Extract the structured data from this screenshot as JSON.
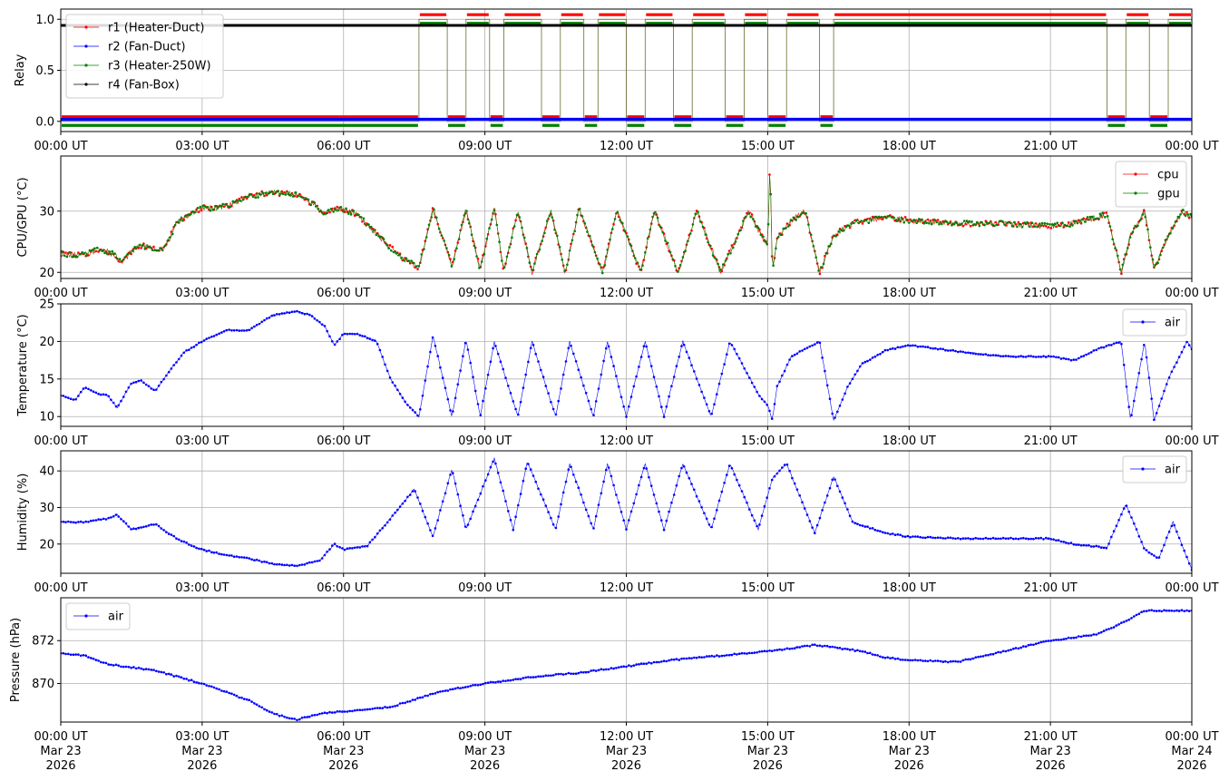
{
  "chart_data": [
    {
      "type": "line",
      "ylabel": "Relay",
      "ylim": [
        -0.1,
        1.1
      ],
      "yticks": [
        0.0,
        0.5,
        1.0
      ],
      "ytick_labels": [
        "0.0",
        "0.5",
        "1.0"
      ],
      "grid": true,
      "legend_position": "upper-left",
      "series": [
        {
          "name": "r1 (Heater-Duct)",
          "color": "#ff0000",
          "offset": 0.045,
          "on_intervals": [
            [
              7.6,
              8.2
            ],
            [
              8.6,
              9.1
            ],
            [
              9.4,
              10.2
            ],
            [
              10.6,
              11.1
            ],
            [
              11.4,
              12.0
            ],
            [
              12.4,
              13.0
            ],
            [
              13.4,
              14.1
            ],
            [
              14.5,
              15.0
            ],
            [
              15.4,
              16.1
            ],
            [
              16.4,
              22.2
            ],
            [
              22.6,
              23.1
            ],
            [
              23.5,
              24.0
            ]
          ]
        },
        {
          "name": "r2 (Fan-Duct)",
          "color": "#0000ff",
          "offset": 0.02,
          "on_intervals": []
        },
        {
          "name": "r3 (Heater-250W)",
          "color": "#008000",
          "offset": -0.04,
          "on_intervals": [
            [
              7.6,
              8.2
            ],
            [
              8.6,
              9.1
            ],
            [
              9.4,
              10.2
            ],
            [
              10.6,
              11.1
            ],
            [
              11.4,
              12.0
            ],
            [
              12.4,
              13.0
            ],
            [
              13.4,
              14.1
            ],
            [
              14.5,
              15.0
            ],
            [
              15.4,
              16.1
            ],
            [
              16.4,
              22.2
            ],
            [
              22.6,
              23.1
            ],
            [
              23.5,
              24.0
            ]
          ]
        },
        {
          "name": "r4 (Fan-Box)",
          "color": "#000000",
          "constant": 0.94
        }
      ]
    },
    {
      "type": "line",
      "ylabel": "CPU/GPU (°C)",
      "ylim": [
        19,
        39
      ],
      "yticks": [
        20,
        30
      ],
      "ytick_labels": [
        "20",
        "30"
      ],
      "grid": true,
      "legend_position": "upper-right",
      "series": [
        {
          "name": "cpu",
          "color": "#ff0000"
        },
        {
          "name": "gpu",
          "color": "#008000"
        }
      ],
      "x": [
        0,
        0.5,
        0.8,
        1.0,
        1.2,
        1.3,
        1.5,
        1.7,
        2.0,
        2.2,
        2.5,
        3.0,
        3.3,
        3.6,
        4.0,
        4.5,
        5.0,
        5.4,
        5.6,
        5.8,
        6.0,
        6.3,
        6.6,
        7.0,
        7.3,
        7.6,
        7.9,
        8.3,
        8.6,
        8.9,
        9.2,
        9.4,
        9.7,
        10.0,
        10.4,
        10.7,
        11.0,
        11.5,
        11.8,
        12.3,
        12.6,
        13.1,
        13.5,
        14.0,
        14.6,
        15.0,
        15.05,
        15.1,
        15.2,
        15.5,
        15.8,
        16.1,
        16.4,
        16.8,
        17.5,
        18.0,
        19.0,
        20.0,
        21.0,
        21.5,
        22.0,
        22.2,
        22.5,
        22.7,
        23.0,
        23.2,
        23.5,
        23.8,
        24.0
      ],
      "values": [
        23,
        22.8,
        23.8,
        23.4,
        22.5,
        21.5,
        23.5,
        24.4,
        23.8,
        24.0,
        28.5,
        30.5,
        30.5,
        31.0,
        32.5,
        33.0,
        32.8,
        31.0,
        29.5,
        30.3,
        30.2,
        29.5,
        27.0,
        24.0,
        22.0,
        20.8,
        30.3,
        21.0,
        30.3,
        20.5,
        30.5,
        20.2,
        30.0,
        20.0,
        30.0,
        20.0,
        30.3,
        20.0,
        30.3,
        20.0,
        30.0,
        20.0,
        30.0,
        20.0,
        30.0,
        24.0,
        38.5,
        20.0,
        25.5,
        28.5,
        30.0,
        20.0,
        26.0,
        28.0,
        29.0,
        28.5,
        28.0,
        28.0,
        27.5,
        28.0,
        29.0,
        29.5,
        20.0,
        26.0,
        30.0,
        20.5,
        26.0,
        30.0,
        29.0
      ]
    },
    {
      "type": "line",
      "ylabel": "Temperature (°C)",
      "ylim": [
        8.7,
        25
      ],
      "yticks": [
        10,
        15,
        20,
        25
      ],
      "ytick_labels": [
        "10",
        "15",
        "20",
        "25"
      ],
      "grid": true,
      "legend_position": "upper-right",
      "series": [
        {
          "name": "air",
          "color": "#0000ff"
        }
      ],
      "x": [
        0,
        0.3,
        0.5,
        0.8,
        1.0,
        1.2,
        1.5,
        1.7,
        2.0,
        2.3,
        2.6,
        3.0,
        3.5,
        4.0,
        4.5,
        5.0,
        5.3,
        5.6,
        5.8,
        6.0,
        6.3,
        6.7,
        7.0,
        7.3,
        7.6,
        7.9,
        8.3,
        8.6,
        8.9,
        9.2,
        9.7,
        10.0,
        10.5,
        10.8,
        11.3,
        11.6,
        12.0,
        12.4,
        12.8,
        13.2,
        13.8,
        14.2,
        14.8,
        15.0,
        15.1,
        15.2,
        15.5,
        16.1,
        16.4,
        16.7,
        17.0,
        17.5,
        18.0,
        19.0,
        20.0,
        21.0,
        21.5,
        22.0,
        22.5,
        22.7,
        23.0,
        23.2,
        23.5,
        23.9,
        24.0
      ],
      "values": [
        12.8,
        12.2,
        13.9,
        13.0,
        12.8,
        11.2,
        14.5,
        14.8,
        13.4,
        16.0,
        18.5,
        20.0,
        21.5,
        21.5,
        23.5,
        24.0,
        23.5,
        22.0,
        19.5,
        21.0,
        21.0,
        20.0,
        15.0,
        12.0,
        10.0,
        20.7,
        10.0,
        20.3,
        10.0,
        20.0,
        10.0,
        20.0,
        10.0,
        20.0,
        10.0,
        20.0,
        10.0,
        20.0,
        10.0,
        20.0,
        10.0,
        20.0,
        13.0,
        11.5,
        9.5,
        14.0,
        18.0,
        20.0,
        9.5,
        14.0,
        17.0,
        18.8,
        19.5,
        18.7,
        18.0,
        18.0,
        17.5,
        19.0,
        20.0,
        9.5,
        20.0,
        9.5,
        15.0,
        20.0,
        19.0
      ]
    },
    {
      "type": "line",
      "ylabel": "Humidity (%)",
      "ylim": [
        12,
        45.5
      ],
      "yticks": [
        20,
        30,
        40
      ],
      "ytick_labels": [
        "20",
        "30",
        "40"
      ],
      "grid": true,
      "legend_position": "upper-right",
      "series": [
        {
          "name": "air",
          "color": "#0000ff"
        }
      ],
      "x": [
        0,
        0.5,
        1.0,
        1.2,
        1.5,
        2.0,
        2.4,
        2.7,
        3.0,
        3.5,
        4.0,
        4.5,
        5.0,
        5.5,
        5.8,
        6.0,
        6.5,
        7.0,
        7.5,
        7.9,
        8.3,
        8.6,
        9.2,
        9.6,
        9.9,
        10.5,
        10.8,
        11.3,
        11.6,
        12.0,
        12.4,
        12.8,
        13.2,
        13.8,
        14.2,
        14.8,
        15.1,
        15.4,
        16.0,
        16.4,
        16.8,
        17.5,
        18.0,
        19.0,
        20.0,
        21.0,
        21.5,
        22.2,
        22.6,
        23.0,
        23.3,
        23.6,
        24.0
      ],
      "values": [
        26,
        26,
        27,
        28,
        24,
        25.5,
        22,
        20,
        18.5,
        17,
        16,
        14.5,
        14,
        15.5,
        20,
        18.5,
        19.5,
        27,
        35,
        22,
        40.5,
        24,
        43.5,
        24,
        42.5,
        24,
        42,
        24,
        42,
        24,
        42,
        24,
        42,
        24,
        42,
        24,
        38,
        42,
        23,
        38.5,
        26,
        23,
        22,
        21.5,
        21.5,
        21.5,
        20,
        19,
        31,
        18.5,
        16,
        26,
        13
      ]
    },
    {
      "type": "line",
      "ylabel": "Pressure (hPa)",
      "ylim": [
        868.2,
        874.0
      ],
      "yticks": [
        870,
        872
      ],
      "ytick_labels": [
        "870",
        "872"
      ],
      "grid": true,
      "legend_position": "upper-left",
      "series": [
        {
          "name": "air",
          "color": "#0000ff"
        }
      ],
      "x": [
        0,
        0.5,
        1.0,
        2.0,
        2.5,
        3.0,
        3.5,
        4.0,
        4.5,
        5.0,
        5.5,
        6.0,
        7.0,
        8.0,
        9.0,
        10.0,
        11.0,
        12.0,
        13.0,
        14.0,
        15.0,
        16.0,
        17.0,
        17.5,
        18.0,
        19.0,
        20.0,
        21.0,
        22.0,
        22.5,
        23.0,
        23.5,
        24.0
      ],
      "values": [
        871.4,
        871.3,
        870.9,
        870.6,
        870.3,
        870.0,
        869.6,
        869.2,
        868.6,
        868.3,
        868.6,
        868.7,
        868.9,
        869.6,
        870.0,
        870.3,
        870.5,
        870.8,
        871.1,
        871.3,
        871.5,
        871.8,
        871.5,
        871.2,
        871.1,
        871.0,
        871.5,
        872.0,
        872.3,
        872.8,
        873.4,
        873.4,
        873.4
      ]
    }
  ],
  "xaxis": {
    "tick_labels": [
      "00:00 UT",
      "03:00 UT",
      "06:00 UT",
      "09:00 UT",
      "12:00 UT",
      "15:00 UT",
      "18:00 UT",
      "21:00 UT",
      "00:00 UT"
    ],
    "date_lines": [
      "Mar 23",
      "Mar 23",
      "Mar 23",
      "Mar 23",
      "Mar 23",
      "Mar 23",
      "Mar 23",
      "Mar 23",
      "Mar 24"
    ],
    "year_lines": [
      "2026",
      "2026",
      "2026",
      "2026",
      "2026",
      "2026",
      "2026",
      "2026",
      "2026"
    ]
  }
}
